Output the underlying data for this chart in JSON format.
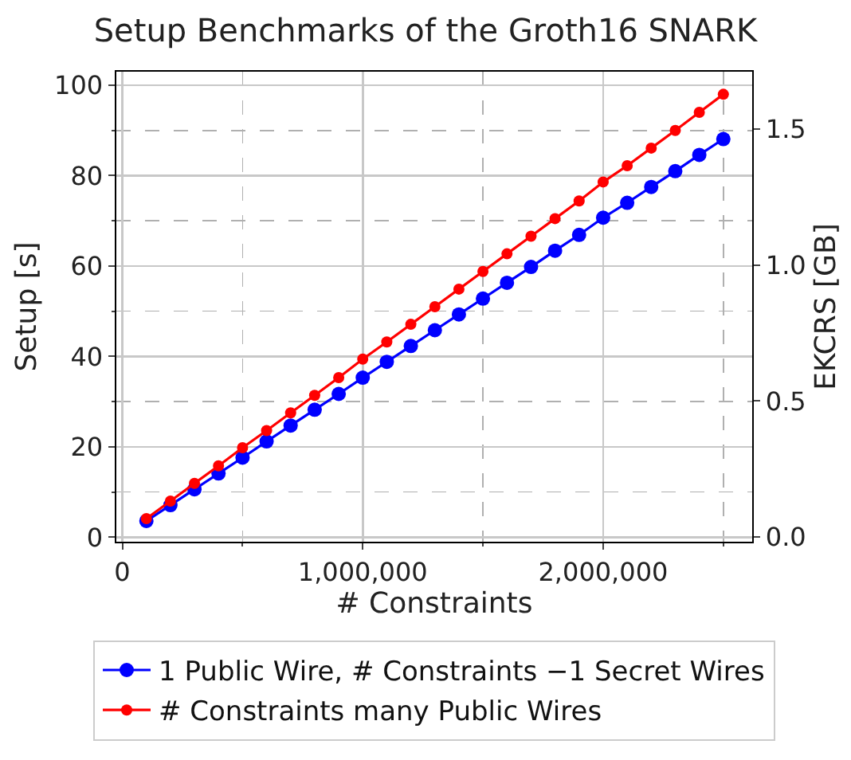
{
  "chart_data": {
    "type": "line",
    "title": "Setup Benchmarks of the Groth16 SNARK",
    "xlabel": "# Constraints",
    "ylabel": "Setup [s]",
    "y2label": "EKCRS [GB]",
    "x": [
      100000,
      200000,
      300000,
      400000,
      500000,
      600000,
      700000,
      800000,
      900000,
      1000000,
      1100000,
      1200000,
      1300000,
      1400000,
      1500000,
      1600000,
      1700000,
      1800000,
      1900000,
      2000000,
      2100000,
      2200000,
      2300000,
      2400000,
      2500000
    ],
    "series": [
      {
        "name": "1 Public Wire, # Constraints −1 Secret Wires",
        "color": "#0000ff",
        "marker": "circle",
        "values": [
          3.6,
          7.1,
          10.6,
          14.1,
          17.6,
          21.2,
          24.7,
          28.2,
          31.7,
          35.3,
          38.8,
          42.3,
          45.8,
          49.3,
          52.8,
          56.3,
          59.8,
          63.4,
          66.9,
          70.7,
          74.0,
          77.5,
          81.0,
          84.6,
          88.1
        ]
      },
      {
        "name": "# Constraints many Public Wires",
        "color": "#ff0000",
        "marker": "circle",
        "values": [
          4.1,
          8.0,
          11.9,
          15.8,
          19.8,
          23.6,
          27.5,
          31.4,
          35.3,
          39.4,
          43.2,
          47.1,
          51.0,
          54.9,
          58.8,
          62.7,
          66.6,
          70.5,
          74.4,
          78.6,
          82.2,
          86.1,
          90.0,
          94.0,
          98.0
        ]
      }
    ],
    "xlim": [
      -25000,
      2620000
    ],
    "xticks": [
      0,
      {
        "value": 1000000,
        "label": "1,000,000"
      },
      {
        "value": 2000000,
        "label": "2,000,000"
      }
    ],
    "ylim": [
      -1,
      103
    ],
    "yticks": [
      0,
      20,
      40,
      60,
      80,
      100
    ],
    "y2lim": [
      -0.017,
      1.71
    ],
    "y2ticks": [
      {
        "value": 0,
        "label": "0.0"
      },
      0.5,
      {
        "value": 1,
        "label": "1.0"
      },
      1.5
    ],
    "grid": true,
    "legend": "bottom",
    "line_style": "solid"
  }
}
